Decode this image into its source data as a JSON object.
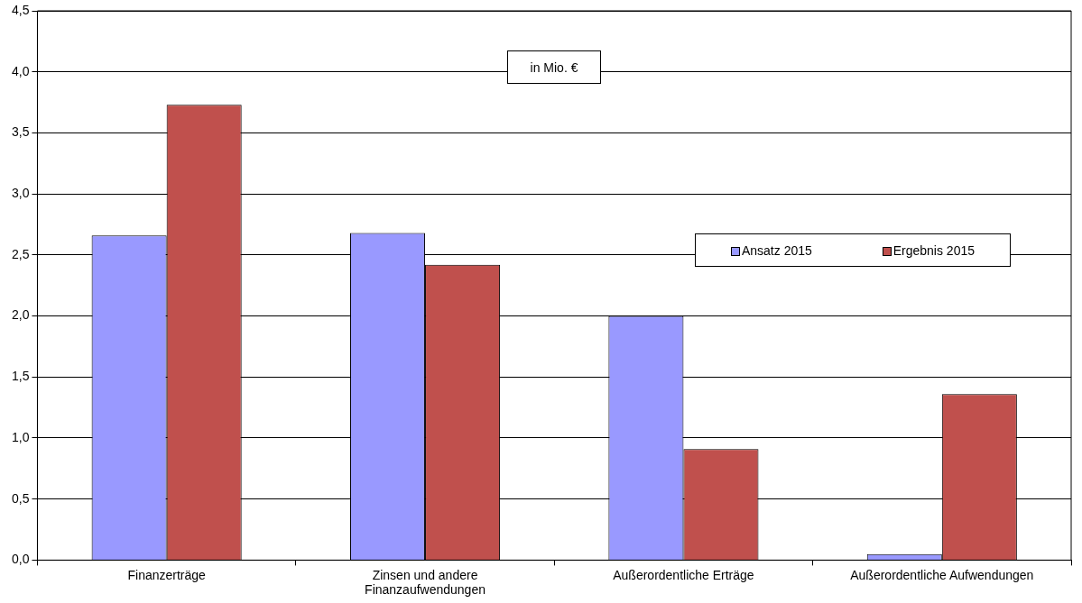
{
  "chart_data": {
    "type": "bar",
    "categories": [
      "Finanzerträge",
      "Zinsen und andere Finanzaufwendungen",
      "Außerordentliche Erträge",
      "Außerordentliche Aufwendungen"
    ],
    "series": [
      {
        "name": "Ansatz 2015",
        "color": "#9999ff",
        "values": [
          2.66,
          2.68,
          2.0,
          0.05
        ]
      },
      {
        "name": "Ergebnis 2015",
        "color": "#c0504d",
        "values": [
          3.73,
          2.42,
          0.91,
          1.36
        ]
      }
    ],
    "ylim": [
      0,
      4.5
    ],
    "yticks": [
      {
        "value": 0,
        "label": "0,0"
      },
      {
        "value": 0.5,
        "label": "0,5"
      },
      {
        "value": 1,
        "label": "1,0"
      },
      {
        "value": 1.5,
        "label": "1,5"
      },
      {
        "value": 2,
        "label": "2,0"
      },
      {
        "value": 2.5,
        "label": "2,5"
      },
      {
        "value": 3,
        "label": "3,0"
      },
      {
        "value": 3.5,
        "label": "3,5"
      },
      {
        "value": 4,
        "label": "4,0"
      },
      {
        "value": 4.5,
        "label": "4,5"
      }
    ],
    "grid": "y",
    "legend": "right",
    "annotations": [
      "in Mio. €"
    ]
  }
}
